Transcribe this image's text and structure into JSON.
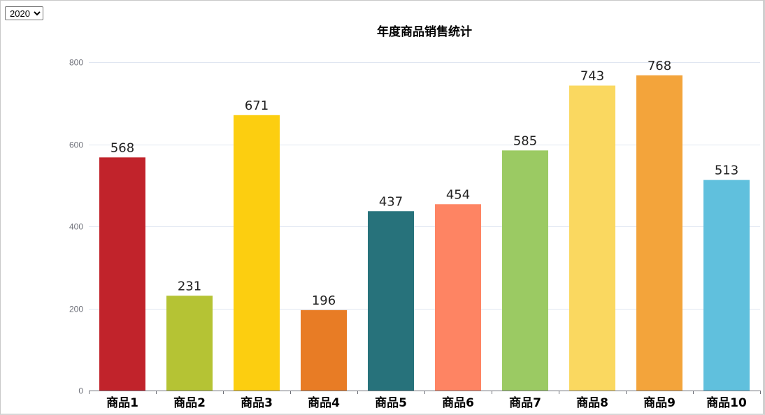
{
  "controls": {
    "year_select": {
      "selected": "2020",
      "options": [
        "2020"
      ]
    }
  },
  "chart_data": {
    "type": "bar",
    "title": "年度商品销售统计",
    "categories": [
      "商品1",
      "商品2",
      "商品3",
      "商品4",
      "商品5",
      "商品6",
      "商品7",
      "商品8",
      "商品9",
      "商品10"
    ],
    "values": [
      568,
      231,
      671,
      196,
      437,
      454,
      585,
      743,
      768,
      513
    ],
    "colors": [
      "#c1232b",
      "#b5c334",
      "#fcce10",
      "#e87c25",
      "#27727b",
      "#fe8463",
      "#9bca63",
      "#fad860",
      "#f3a43b",
      "#60c0dd"
    ],
    "xlabel": "",
    "ylabel": "",
    "ylim": [
      0,
      800
    ],
    "yticks": [
      0,
      200,
      400,
      600,
      800
    ],
    "grid": true,
    "data_labels": true,
    "legend": "none"
  }
}
